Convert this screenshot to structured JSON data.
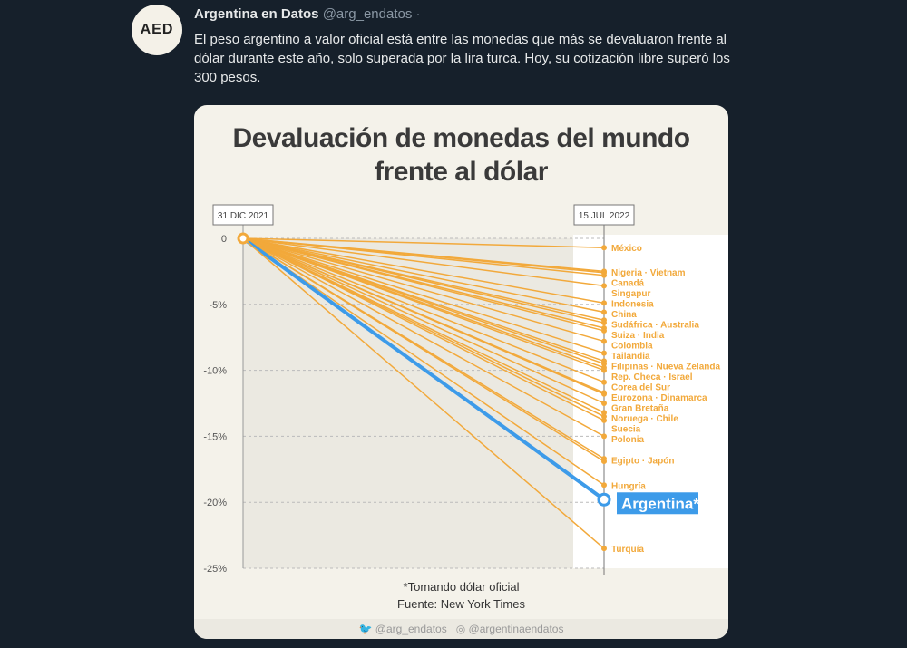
{
  "tweet": {
    "author": "Argentina en Datos",
    "handle": "@arg_endatos",
    "separator": "·",
    "avatar_text": "AED",
    "text": "El peso argentino a valor oficial está entre las monedas que más se devaluaron frente al dólar durante este año, solo superada por la lira turca. Hoy, su cotización libre superó los 300 pesos."
  },
  "chart_data": {
    "type": "line",
    "title": "Devaluación de monedas del mundo frente al dólar",
    "start_label": "31 DIC 2021",
    "end_label": "15 JUL 2022",
    "y_ticks": [
      "0",
      "-5%",
      "-10%",
      "-15%",
      "-20%",
      "-25%"
    ],
    "ylim": [
      -25,
      0
    ],
    "colors": {
      "others": "#f2a93b",
      "argentina": "#3d9be9"
    },
    "series": [
      {
        "name": "México",
        "values": [
          -0.7
        ]
      },
      {
        "name": "Nigeria · Vietnam",
        "values": [
          -2.5,
          -2.6
        ]
      },
      {
        "name": "Canadá",
        "values": [
          -2.8
        ]
      },
      {
        "name": "Singapur",
        "values": [
          -3.6
        ]
      },
      {
        "name": "Indonesia",
        "values": [
          -4.9
        ]
      },
      {
        "name": "China",
        "values": [
          -5.6
        ]
      },
      {
        "name": "Sudáfrica · Australia",
        "values": [
          -6.2,
          -6.4
        ]
      },
      {
        "name": "Suiza · India",
        "values": [
          -6.8,
          -7.0
        ]
      },
      {
        "name": "Colombia",
        "values": [
          -7.8
        ]
      },
      {
        "name": "Tailandia",
        "values": [
          -8.7
        ]
      },
      {
        "name": "Filipinas · Nueva Zelanda",
        "values": [
          -9.3,
          -9.5
        ]
      },
      {
        "name": "Rep. Checa · Israel",
        "values": [
          -9.8,
          -10.0
        ]
      },
      {
        "name": "Corea del Sur",
        "values": [
          -10.9
        ]
      },
      {
        "name": "Eurozona · Dinamarca",
        "values": [
          -11.7,
          -11.8
        ]
      },
      {
        "name": "Gran Bretaña",
        "values": [
          -12.5
        ]
      },
      {
        "name": "Noruega · Chile",
        "values": [
          -13.2,
          -13.5
        ]
      },
      {
        "name": "Suecia",
        "values": [
          -13.8
        ]
      },
      {
        "name": "Polonia",
        "values": [
          -15.0
        ]
      },
      {
        "name": "Egipto · Japón",
        "values": [
          -16.7,
          -16.9
        ]
      },
      {
        "name": "Hungría",
        "values": [
          -18.7
        ]
      },
      {
        "name": "Argentina*",
        "values": [
          -19.8
        ],
        "highlight": true
      },
      {
        "name": "Turquía",
        "values": [
          -23.5
        ]
      }
    ],
    "footnote": "*Tomando dólar oficial",
    "source": "Fuente: New York Times",
    "social": [
      "@arg_endatos",
      "@argentinaendatos"
    ]
  }
}
